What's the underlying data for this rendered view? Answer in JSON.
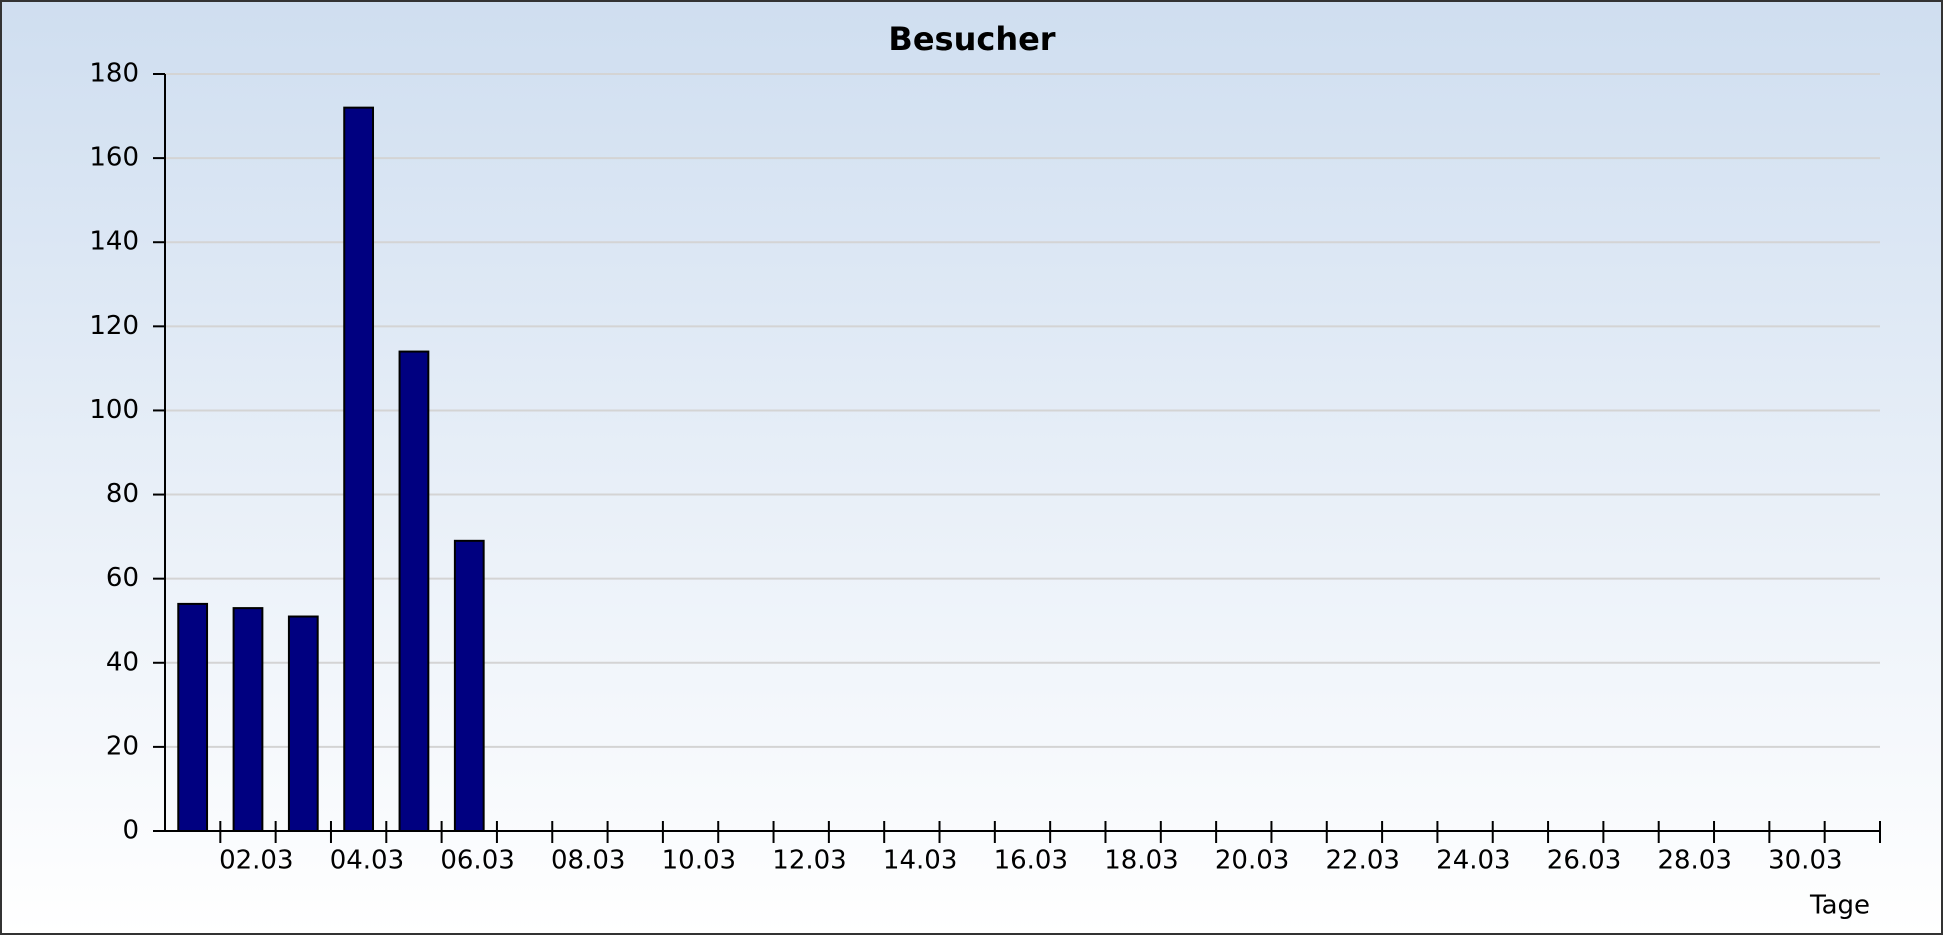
{
  "chart_data": {
    "type": "bar",
    "title": "Besucher",
    "x_label": "Tage",
    "categories": [
      null,
      "02.03",
      null,
      "04.03",
      null,
      "06.03",
      null,
      "08.03",
      null,
      "10.03",
      null,
      "12.03",
      null,
      "14.03",
      null,
      "16.03",
      null,
      "18.03",
      null,
      "20.03",
      null,
      "22.03",
      null,
      "24.03",
      null,
      "26.03",
      null,
      "28.03",
      null,
      "30.03",
      null
    ],
    "values": [
      54,
      53,
      51,
      172,
      114,
      69,
      null,
      null,
      null,
      null,
      null,
      null,
      null,
      null,
      null,
      null,
      null,
      null,
      null,
      null,
      null,
      null,
      null,
      null,
      null,
      null,
      null,
      null,
      null,
      null,
      null
    ],
    "color": "#000080",
    "ylim": [
      0,
      180
    ],
    "yticks": [
      0,
      20,
      40,
      60,
      80,
      100,
      120,
      140,
      160,
      180
    ],
    "grid": true
  }
}
